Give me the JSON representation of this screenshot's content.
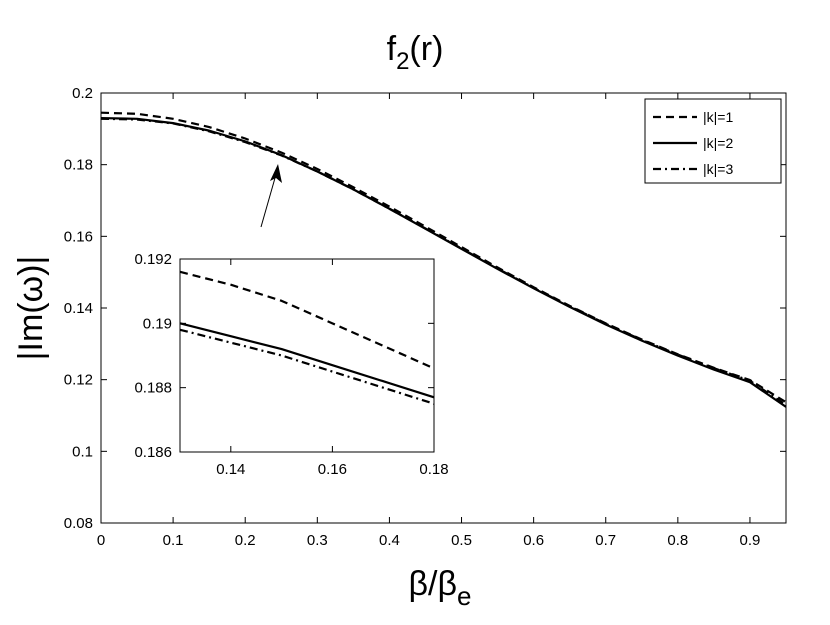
{
  "chart_data": {
    "type": "line",
    "title": "f",
    "title_sub": "2",
    "title_suffix": "(r)",
    "xlabel": "β/β",
    "xlabel_sub": "e",
    "ylabel": "|Im(ω)|",
    "xlim": [
      0,
      0.95
    ],
    "ylim": [
      0.08,
      0.2
    ],
    "xticks": [
      "0",
      "0.1",
      "0.2",
      "0.3",
      "0.4",
      "0.5",
      "0.6",
      "0.7",
      "0.8",
      "0.9"
    ],
    "yticks": [
      "0.08",
      "0.1",
      "0.12",
      "0.14",
      "0.16",
      "0.18",
      "0.2"
    ],
    "grid": false,
    "legend_position": "top-right",
    "series": [
      {
        "name": "|k|=1",
        "dash": "dashed",
        "x": [
          0,
          0.05,
          0.1,
          0.15,
          0.2,
          0.25,
          0.3,
          0.35,
          0.4,
          0.45,
          0.5,
          0.55,
          0.6,
          0.65,
          0.7,
          0.75,
          0.8,
          0.85,
          0.9,
          0.95
        ],
        "y": [
          0.1945,
          0.1942,
          0.1928,
          0.1905,
          0.1873,
          0.1834,
          0.1788,
          0.1737,
          0.1683,
          0.1627,
          0.157,
          0.1513,
          0.1458,
          0.1406,
          0.1357,
          0.1312,
          0.1271,
          0.1233,
          0.1199,
          0.1137
        ]
      },
      {
        "name": "|k|=2",
        "dash": "solid",
        "x": [
          0,
          0.05,
          0.1,
          0.15,
          0.2,
          0.25,
          0.3,
          0.35,
          0.4,
          0.45,
          0.5,
          0.55,
          0.6,
          0.65,
          0.7,
          0.75,
          0.8,
          0.85,
          0.9,
          0.95
        ],
        "y": [
          0.193,
          0.1928,
          0.1916,
          0.1895,
          0.1865,
          0.1827,
          0.1781,
          0.1731,
          0.1677,
          0.1621,
          0.1565,
          0.1509,
          0.1455,
          0.1403,
          0.1354,
          0.1309,
          0.1267,
          0.1228,
          0.1193,
          0.1124
        ]
      },
      {
        "name": "|k|=3",
        "dash": "dash-dot",
        "x": [
          0,
          0.05,
          0.1,
          0.15,
          0.2,
          0.25,
          0.3,
          0.35,
          0.4,
          0.45,
          0.5,
          0.55,
          0.6,
          0.65,
          0.7,
          0.75,
          0.8,
          0.85,
          0.9,
          0.95
        ],
        "y": [
          0.1928,
          0.1926,
          0.1915,
          0.1893,
          0.1863,
          0.1826,
          0.1781,
          0.1731,
          0.1677,
          0.1622,
          0.1566,
          0.151,
          0.1456,
          0.1405,
          0.1356,
          0.1311,
          0.127,
          0.1232,
          0.1197,
          0.1129
        ]
      }
    ],
    "inset": {
      "xlim": [
        0.13,
        0.18
      ],
      "ylim": [
        0.186,
        0.192
      ],
      "xticks": [
        "0.14",
        "0.16",
        "0.18"
      ],
      "yticks": [
        "0.186",
        "0.188",
        "0.19",
        "0.192"
      ],
      "series": [
        {
          "name": "|k|=1",
          "dash": "dashed",
          "x": [
            0.13,
            0.14,
            0.15,
            0.16,
            0.17,
            0.18
          ],
          "y": [
            0.1916,
            0.1912,
            0.1907,
            0.19,
            0.1893,
            0.1886
          ]
        },
        {
          "name": "|k|=2",
          "dash": "solid",
          "x": [
            0.13,
            0.14,
            0.15,
            0.16,
            0.17,
            0.18
          ],
          "y": [
            0.19,
            0.1896,
            0.1892,
            0.1887,
            0.1882,
            0.1877
          ]
        },
        {
          "name": "|k|=3",
          "dash": "dash-dot",
          "x": [
            0.13,
            0.14,
            0.15,
            0.16,
            0.17,
            0.18
          ],
          "y": [
            0.1898,
            0.1894,
            0.189,
            0.1885,
            0.188,
            0.1875
          ]
        }
      ]
    }
  }
}
